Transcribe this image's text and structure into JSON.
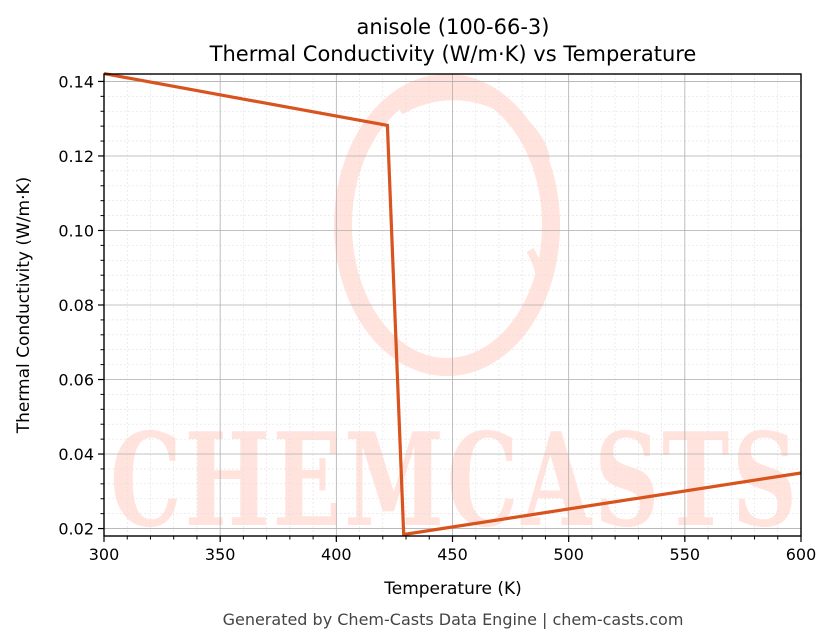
{
  "colors": {
    "series": "#d9531e",
    "watermark": "#ffe3dc",
    "grid_major": "#b0b0b0",
    "grid_minor": "#e0e0e0",
    "footer": "#444444"
  },
  "watermark": {
    "text": "CHEMCASTS"
  },
  "footer": "Generated by Chem-Casts Data Engine | chem-casts.com",
  "chart_data": {
    "type": "line",
    "title": "anisole (100-66-3)",
    "subtitle": "Thermal Conductivity (W/m·K) vs Temperature",
    "xlabel": "Temperature (K)",
    "ylabel": "Thermal Conductivity (W/m·K)",
    "xlim": [
      300,
      600
    ],
    "ylim": [
      0.018,
      0.142
    ],
    "xticks": [
      300,
      350,
      400,
      450,
      500,
      550,
      600
    ],
    "yticks": [
      0.02,
      0.04,
      0.06,
      0.08,
      0.1,
      0.12,
      0.14
    ],
    "ytick_labels": [
      "0.02",
      "0.04",
      "0.06",
      "0.08",
      "0.10",
      "0.12",
      "0.14"
    ],
    "grid": true,
    "minor_grid": true,
    "series": [
      {
        "x": [
          300,
          422,
          429,
          600
        ],
        "y": [
          0.1421,
          0.1282,
          0.0184,
          0.0349
        ],
        "color": "#d9531e"
      }
    ]
  }
}
